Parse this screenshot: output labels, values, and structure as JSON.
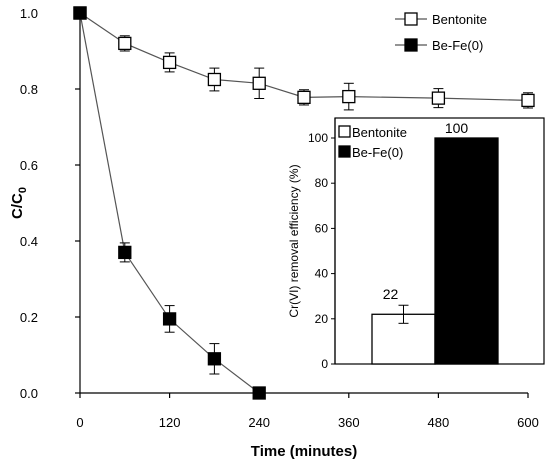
{
  "chart_data": [
    {
      "type": "line",
      "xlabel": "Time (minutes)",
      "ylabel_main": "C/C",
      "ylabel_sub": "0",
      "xlim": [
        0,
        600
      ],
      "ylim": [
        0,
        1.0
      ],
      "xticks": [
        "0",
        "120",
        "240",
        "360",
        "480",
        "600"
      ],
      "yticks": [
        "0.0",
        "0.2",
        "0.4",
        "0.6",
        "0.8",
        "1.0"
      ],
      "legend_position": "top-right",
      "series": [
        {
          "name": "Bentonite",
          "marker": "open-square",
          "x": [
            0,
            60,
            120,
            180,
            240,
            300,
            360,
            480,
            600
          ],
          "y": [
            1.0,
            0.92,
            0.87,
            0.825,
            0.815,
            0.778,
            0.78,
            0.776,
            0.77
          ],
          "err": [
            0.01,
            0.02,
            0.025,
            0.03,
            0.04,
            0.02,
            0.035,
            0.025,
            0.02
          ]
        },
        {
          "name": "Be-Fe(0)",
          "marker": "filled-square",
          "x": [
            0,
            60,
            120,
            180,
            240
          ],
          "y": [
            1.0,
            0.37,
            0.195,
            0.09,
            0.0
          ],
          "err": [
            0.01,
            0.025,
            0.035,
            0.04,
            0.005
          ]
        }
      ]
    },
    {
      "type": "bar",
      "ylabel": "Cr(VI) removal efficiency (%)",
      "ylim": [
        0,
        100
      ],
      "yticks": [
        "0",
        "20",
        "40",
        "60",
        "80",
        "100"
      ],
      "legend_position": "top-left",
      "series": [
        {
          "name": "Bentonite",
          "fill": "open",
          "value": 22,
          "value_label": "22",
          "err": 4
        },
        {
          "name": "Be-Fe(0)",
          "fill": "filled",
          "value": 100,
          "value_label": "100",
          "err": 0
        }
      ]
    }
  ]
}
